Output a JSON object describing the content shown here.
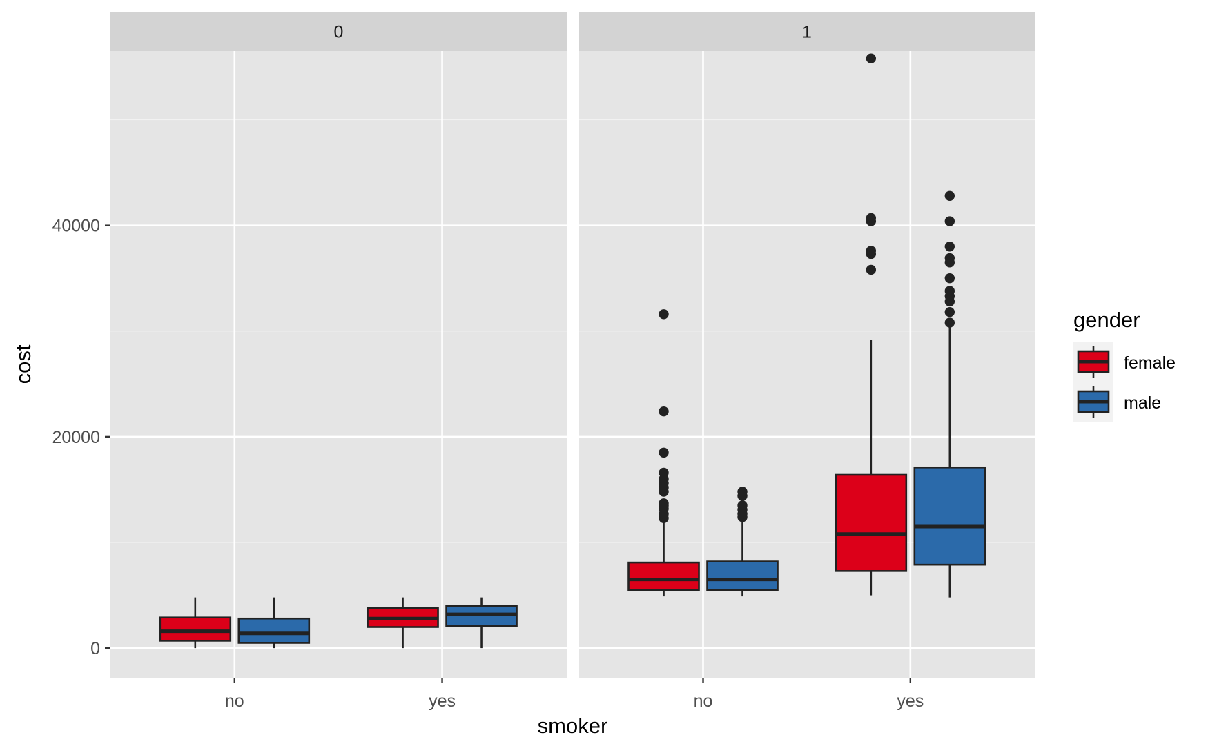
{
  "chart_data": {
    "type": "boxplot",
    "xlabel": "smoker",
    "ylabel": "cost",
    "ylim": [
      -2800,
      56500
    ],
    "y_ticks": [
      0,
      20000,
      40000
    ],
    "y_tick_labels": [
      "0",
      "20000",
      "40000"
    ],
    "y_minor_ticks": [
      10000,
      30000,
      50000
    ],
    "grid": true,
    "categories": [
      "no",
      "yes"
    ],
    "legend": {
      "title": "gender",
      "placement": "right",
      "entries": [
        {
          "label": "female",
          "color": "#dc0019"
        },
        {
          "label": "male",
          "color": "#2b6aaa"
        }
      ]
    },
    "facets": [
      {
        "label": "0",
        "groups": [
          {
            "category": "no",
            "series": "female",
            "min": 0,
            "q1": 700,
            "median": 1600,
            "q3": 2900,
            "max": 4800,
            "outliers": []
          },
          {
            "category": "no",
            "series": "male",
            "min": 0,
            "q1": 500,
            "median": 1400,
            "q3": 2800,
            "max": 4800,
            "outliers": []
          },
          {
            "category": "yes",
            "series": "female",
            "min": 0,
            "q1": 2000,
            "median": 2800,
            "q3": 3800,
            "max": 4800,
            "outliers": []
          },
          {
            "category": "yes",
            "series": "male",
            "min": 0,
            "q1": 2100,
            "median": 3200,
            "q3": 4000,
            "max": 4800,
            "outliers": []
          }
        ]
      },
      {
        "label": "1",
        "groups": [
          {
            "category": "no",
            "series": "female",
            "min": 4900,
            "q1": 5500,
            "median": 6500,
            "q3": 8100,
            "max": 11900,
            "outliers": [
              12300,
              12700,
              13200,
              13500,
              13700,
              14800,
              15200,
              15600,
              16000,
              16600,
              18500,
              22400,
              31600
            ]
          },
          {
            "category": "no",
            "series": "male",
            "min": 4900,
            "q1": 5500,
            "median": 6500,
            "q3": 8200,
            "max": 12000,
            "outliers": [
              12400,
              12700,
              13100,
              13500,
              14400,
              14800
            ]
          },
          {
            "category": "yes",
            "series": "female",
            "min": 5000,
            "q1": 7300,
            "median": 10800,
            "q3": 16400,
            "max": 29200,
            "outliers": [
              35800,
              37300,
              37600,
              40400,
              40700,
              55800
            ]
          },
          {
            "category": "yes",
            "series": "male",
            "min": 4800,
            "q1": 7900,
            "median": 11500,
            "q3": 17100,
            "max": 30500,
            "outliers": [
              30800,
              31800,
              32800,
              33300,
              33800,
              35000,
              36500,
              36900,
              38000,
              40400,
              42800
            ]
          }
        ]
      }
    ]
  }
}
